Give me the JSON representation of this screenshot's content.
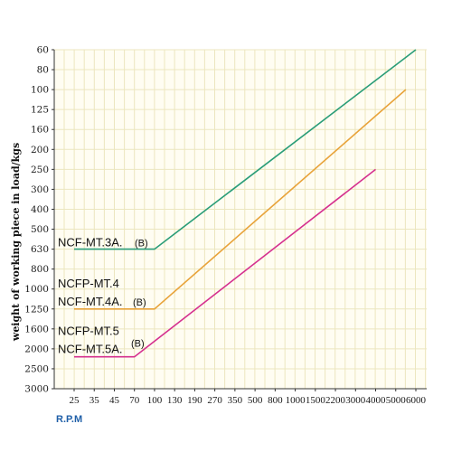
{
  "chart_data": {
    "type": "line",
    "title": "",
    "ylabel": "weight of working piece in load/kgs",
    "xlabel": "R.P.M",
    "grid": true,
    "x_categories": [
      "25",
      "35",
      "45",
      "70",
      "100",
      "130",
      "190",
      "270",
      "350",
      "500",
      "800",
      "1000",
      "1500",
      "2200",
      "3000",
      "4000",
      "5000",
      "6000"
    ],
    "y_categories": [
      "60",
      "80",
      "100",
      "125",
      "160",
      "200",
      "250",
      "300",
      "400",
      "500",
      "630",
      "800",
      "1000",
      "1250",
      "1600",
      "2000",
      "2500",
      "3000"
    ],
    "series": [
      {
        "labels": [
          "NCF-MT.3A.",
          "(B)"
        ],
        "color": "#2a9d78",
        "points": [
          {
            "x": "25",
            "y": "630"
          },
          {
            "x": "100",
            "y": "630"
          },
          {
            "x": "6000",
            "y": "60"
          }
        ]
      },
      {
        "labels": [
          "NCFP-MT.4",
          "NCF-MT.4A.",
          "(B)"
        ],
        "color": "#e8a33a",
        "points": [
          {
            "x": "25",
            "y": "1250"
          },
          {
            "x": "100",
            "y": "1250"
          },
          {
            "x": "5500",
            "y": "100"
          }
        ]
      },
      {
        "labels": [
          "NCFP-MT.5",
          "NCF-MT.5A.",
          "(B)"
        ],
        "color": "#d5308f",
        "points": [
          {
            "x": "25",
            "y": "2200"
          },
          {
            "x": "70",
            "y": "2200"
          },
          {
            "x": "4000",
            "y": "250"
          }
        ]
      }
    ]
  }
}
